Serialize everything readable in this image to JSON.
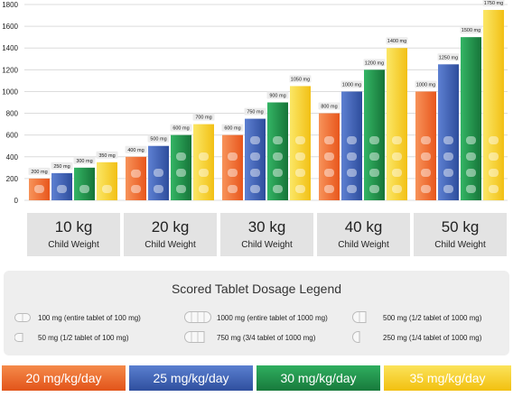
{
  "chart_data": {
    "type": "bar",
    "ylim": [
      0,
      1800
    ],
    "yticks": [
      0,
      200,
      400,
      600,
      800,
      1000,
      1200,
      1400,
      1600,
      1800
    ],
    "categories": [
      "10 kg",
      "20 kg",
      "30 kg",
      "40 kg",
      "50 kg"
    ],
    "category_sublabel": "Child Weight",
    "series": [
      {
        "name": "20 mg/kg/day",
        "color": "#f26522",
        "values": [
          200,
          400,
          600,
          800,
          1000
        ],
        "labels": [
          "200 mg",
          "400 mg",
          "600 mg",
          "800 mg",
          "1000 mg"
        ]
      },
      {
        "name": "25 mg/kg/day",
        "color": "#3d5fb5",
        "values": [
          250,
          500,
          750,
          1000,
          1250
        ],
        "labels": [
          "250 mg",
          "500 mg",
          "750 mg",
          "1000 mg",
          "1250 mg"
        ]
      },
      {
        "name": "30 mg/kg/day",
        "color": "#1e8f4a",
        "values": [
          300,
          600,
          900,
          1200,
          1500
        ],
        "labels": [
          "300 mg",
          "600 mg",
          "900 mg",
          "1200 mg",
          "1500 mg"
        ]
      },
      {
        "name": "35 mg/kg/day",
        "color": "#f5d21e",
        "values": [
          350,
          700,
          1050,
          1400,
          1750
        ],
        "labels": [
          "350 mg",
          "700 mg",
          "1050 mg",
          "1400 mg",
          "1750 mg"
        ]
      }
    ]
  },
  "legend": {
    "title": "Scored Tablet Dosage Legend",
    "items": [
      {
        "text": "100 mg (entire tablet of 100 mg)",
        "icon": "small-tablet-icon"
      },
      {
        "text": "50 mg (1/2 tablet of 100 mg)",
        "icon": "half-small-tablet-icon"
      },
      {
        "text": "1000 mg (entire tablet of 1000 mg)",
        "icon": "large-tablet-icon"
      },
      {
        "text": "750 mg (3/4 tablet of 1000 mg)",
        "icon": "three-quarter-tablet-icon"
      },
      {
        "text": "500 mg (1/2 tablet of 1000 mg)",
        "icon": "half-large-tablet-icon"
      },
      {
        "text": "250 mg (1/4 tablet of 1000 mg)",
        "icon": "quarter-tablet-icon"
      }
    ]
  },
  "bands": [
    "20 mg/kg/day",
    "25 mg/kg/day",
    "30 mg/kg/day",
    "35 mg/kg/day"
  ],
  "colors": {
    "band1": "#f26522",
    "band2": "#3d5fb5",
    "band3": "#1e8f4a",
    "band4": "#f5c518",
    "gridline": "#dcdcdc",
    "panel": "#e3e3e3"
  }
}
